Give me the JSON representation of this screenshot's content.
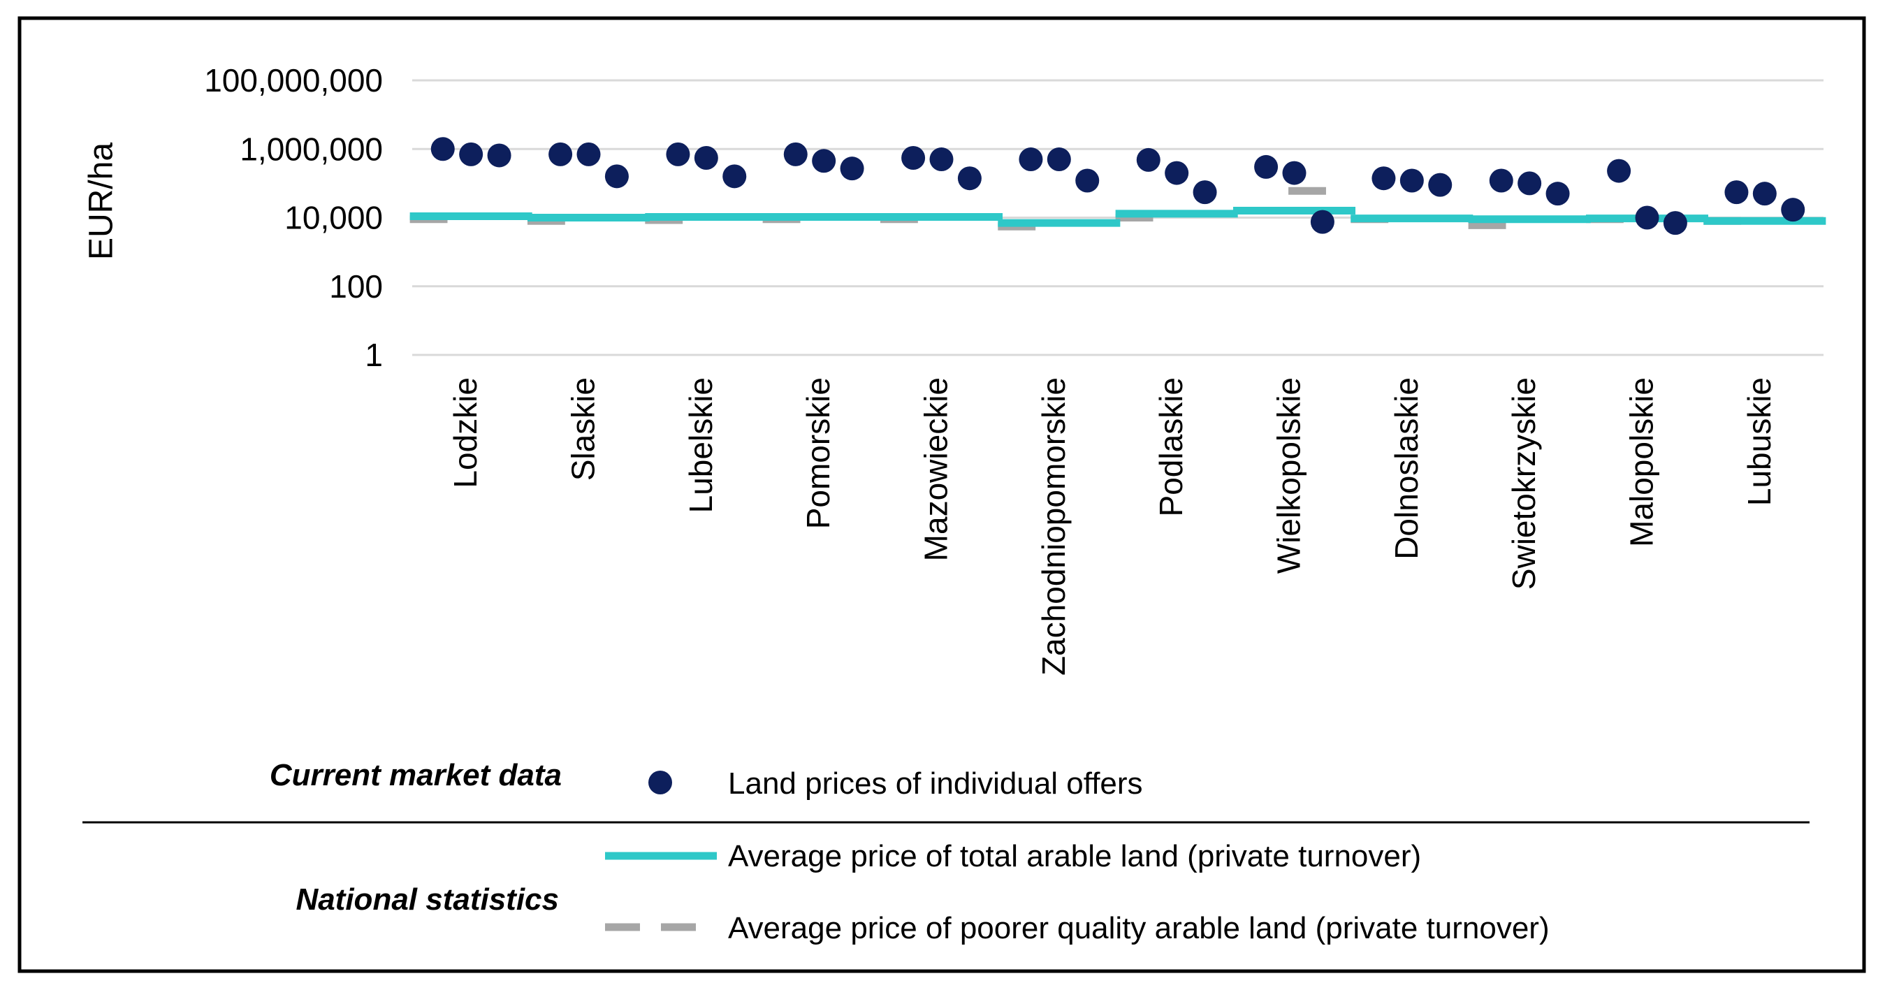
{
  "colors": {
    "dots": "#0d1f5c",
    "total_arable": "#2ec8c8",
    "poorer_quality": "#a6a6a6",
    "grid": "#d9d9d9",
    "text": "#000000",
    "frame": "#000000"
  },
  "chart_data": {
    "type": "scatter",
    "title": "",
    "xlabel": "",
    "ylabel": "EUR/ha",
    "yscale": "log",
    "ylim": [
      1,
      100000000
    ],
    "ytick_values": [
      1,
      100,
      10000,
      1000000,
      100000000
    ],
    "ytick_labels": [
      "1",
      "100",
      "10,000",
      "1,000,000",
      "100,000,000"
    ],
    "grid": true,
    "categories": [
      "Lodzkie",
      "Slaskie",
      "Lubelskie",
      "Pomorskie",
      "Mazowieckie",
      "Zachodniopomorskie",
      "Podlaskie",
      "Wielkopolskie",
      "Dolnoslaskie",
      "Swietokrzyskie",
      "Malopolskie",
      "Lubuskie"
    ],
    "series": [
      {
        "name": "Land prices of individual offers",
        "kind": "scatter",
        "values": [
          [
            1000000,
            700000,
            650000
          ],
          [
            700000,
            700000,
            160000
          ],
          [
            700000,
            550000,
            160000
          ],
          [
            700000,
            450000,
            270000
          ],
          [
            550000,
            500000,
            140000
          ],
          [
            500000,
            500000,
            120000
          ],
          [
            480000,
            200000,
            55000
          ],
          [
            300000,
            200000,
            7500
          ],
          [
            140000,
            120000,
            90000
          ],
          [
            120000,
            100000,
            50000
          ],
          [
            230000,
            10000,
            7000
          ],
          [
            55000,
            50000,
            17000
          ]
        ]
      },
      {
        "name": "Average price of total arable land (private turnover)",
        "kind": "level",
        "values": [
          11000,
          10000,
          10500,
          10500,
          10500,
          7000,
          13000,
          16000,
          9500,
          9000,
          9500,
          8000
        ]
      },
      {
        "name": "Average price of poorer quality arable land (private turnover)",
        "kind": "level",
        "values": [
          9000,
          8000,
          8500,
          9000,
          9000,
          5500,
          10000,
          60000,
          9000,
          6000,
          9000,
          8000
        ]
      }
    ]
  },
  "legend": {
    "current_market_heading": "Current market data",
    "national_statistics_heading": "National statistics",
    "items": [
      "Land prices of individual offers",
      "Average price of total arable land (private turnover)",
      "Average price of poorer quality arable land (private turnover)"
    ]
  }
}
